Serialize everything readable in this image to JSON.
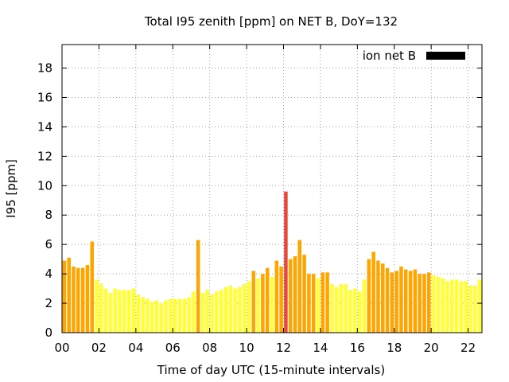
{
  "chart_data": {
    "type": "bar",
    "title": "Total I95 zenith [ppm] on NET B, DoY=132",
    "xlabel": "Time of day UTC (15-minute intervals)",
    "ylabel": "I95 [ppm]",
    "xlim": [
      0,
      22.75
    ],
    "ylim": [
      0,
      19.6
    ],
    "grid": true,
    "legend": {
      "position": "top-right",
      "label": "ion net B",
      "color": "#000000"
    },
    "x_ticks": [
      {
        "value": 0,
        "label": "00"
      },
      {
        "value": 2,
        "label": "02"
      },
      {
        "value": 4,
        "label": "04"
      },
      {
        "value": 6,
        "label": "06"
      },
      {
        "value": 8,
        "label": "08"
      },
      {
        "value": 10,
        "label": "10"
      },
      {
        "value": 12,
        "label": "12"
      },
      {
        "value": 14,
        "label": "14"
      },
      {
        "value": 16,
        "label": "16"
      },
      {
        "value": 18,
        "label": "18"
      },
      {
        "value": 20,
        "label": "20"
      },
      {
        "value": 22,
        "label": "22"
      }
    ],
    "y_ticks": [
      {
        "value": 0,
        "label": "0"
      },
      {
        "value": 2,
        "label": "2"
      },
      {
        "value": 4,
        "label": "4"
      },
      {
        "value": 6,
        "label": "6"
      },
      {
        "value": 8,
        "label": "8"
      },
      {
        "value": 10,
        "label": "10"
      },
      {
        "value": 12,
        "label": "12"
      },
      {
        "value": 14,
        "label": "14"
      },
      {
        "value": 16,
        "label": "16"
      },
      {
        "value": 18,
        "label": "18"
      }
    ],
    "colors": {
      "low": "#ffff33",
      "mid": "#ffa500",
      "high": "#e8473a"
    },
    "interval_hours": 0.25,
    "values": [
      4.9,
      5.1,
      4.5,
      4.4,
      4.4,
      4.6,
      6.2,
      3.6,
      3.3,
      3.0,
      2.7,
      3.0,
      2.9,
      2.9,
      2.9,
      3.0,
      2.6,
      2.4,
      2.3,
      2.1,
      2.2,
      2.0,
      2.2,
      2.3,
      2.3,
      2.3,
      2.3,
      2.4,
      2.8,
      6.3,
      2.7,
      2.9,
      2.6,
      2.8,
      2.9,
      3.1,
      3.2,
      3.0,
      3.1,
      3.3,
      3.5,
      4.2,
      3.7,
      4.0,
      4.4,
      3.8,
      4.9,
      4.5,
      9.6,
      5.0,
      5.2,
      6.3,
      5.3,
      4.0,
      4.0,
      3.7,
      4.1,
      4.1,
      3.3,
      3.1,
      3.3,
      3.3,
      2.9,
      3.0,
      2.8,
      3.6,
      5.0,
      5.5,
      4.9,
      4.7,
      4.4,
      4.1,
      4.2,
      4.5,
      4.3,
      4.2,
      4.3,
      4.0,
      4.0,
      4.1,
      3.9,
      3.8,
      3.7,
      3.5,
      3.6,
      3.6,
      3.5,
      3.5,
      3.2,
      3.2,
      3.6
    ]
  }
}
